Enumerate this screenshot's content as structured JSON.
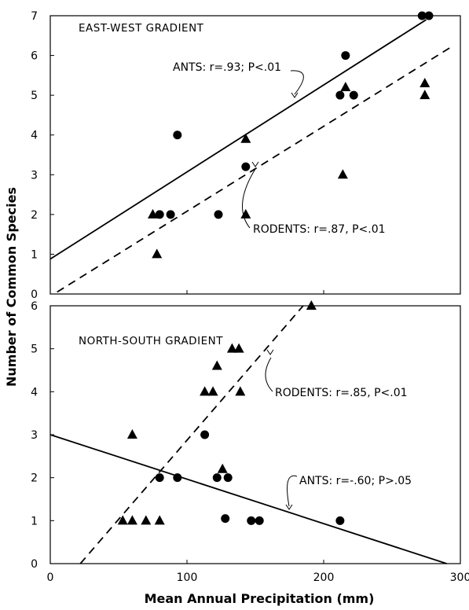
{
  "figure": {
    "ylabel": "Number of Common Species",
    "xlabel": "Mean Annual Precipitation (mm)"
  },
  "chart_data": [
    {
      "type": "scatter",
      "title": "EAST-WEST GRADIENT",
      "xlim": [
        0,
        300
      ],
      "ylim": [
        0,
        7
      ],
      "x_ticks": [],
      "y_ticks": [
        0,
        1,
        2,
        3,
        4,
        5,
        6,
        7
      ],
      "series": [
        {
          "marker": "circle",
          "points": [
            [
              80,
              2
            ],
            [
              88,
              2
            ],
            [
              93,
              4
            ],
            [
              123,
              2
            ],
            [
              143,
              3.2
            ],
            [
              212,
              5
            ],
            [
              216,
              6
            ],
            [
              222,
              5
            ],
            [
              272,
              7
            ],
            [
              277,
              7
            ]
          ]
        },
        {
          "marker": "triangle",
          "points": [
            [
              75,
              2
            ],
            [
              78,
              1
            ],
            [
              143,
              3.9
            ],
            [
              143,
              2
            ],
            [
              214,
              3
            ],
            [
              216,
              5.2
            ],
            [
              274,
              5.3
            ],
            [
              274,
              5
            ]
          ]
        }
      ],
      "lines": [
        {
          "style": "solid",
          "x": [
            0,
            275
          ],
          "y": [
            0.88,
            6.9
          ],
          "annotation": "ANTS: r=.93; P<.01"
        },
        {
          "style": "dashed",
          "x": [
            5,
            295
          ],
          "y": [
            0.05,
            6.25
          ],
          "annotation": "RODENTS: r=.87, P<.01"
        }
      ]
    },
    {
      "type": "scatter",
      "title": "NORTH-SOUTH GRADIENT",
      "xlim": [
        0,
        300
      ],
      "ylim": [
        0,
        6
      ],
      "x_ticks": [
        0,
        100,
        200,
        300
      ],
      "y_ticks": [
        0,
        1,
        2,
        3,
        4,
        5,
        6
      ],
      "series": [
        {
          "marker": "circle",
          "points": [
            [
              80,
              2
            ],
            [
              93,
              2
            ],
            [
              113,
              3
            ],
            [
              122,
              2
            ],
            [
              128,
              1.05
            ],
            [
              130,
              2
            ],
            [
              147,
              1
            ],
            [
              153,
              1
            ],
            [
              212,
              1
            ]
          ]
        },
        {
          "marker": "triangle",
          "points": [
            [
              53,
              1
            ],
            [
              60,
              3
            ],
            [
              60,
              1
            ],
            [
              70,
              1
            ],
            [
              80,
              1
            ],
            [
              113,
              4
            ],
            [
              119,
              4
            ],
            [
              122,
              4.6
            ],
            [
              126,
              2.2
            ],
            [
              133,
              5
            ],
            [
              138,
              5
            ],
            [
              139,
              4
            ],
            [
              191,
              6
            ]
          ]
        }
      ],
      "lines": [
        {
          "style": "solid",
          "x": [
            0,
            290
          ],
          "y": [
            3,
            0
          ],
          "annotation": "ANTS: r=-.60; P>.05"
        },
        {
          "style": "dashed",
          "x": [
            22,
            185
          ],
          "y": [
            0,
            6
          ],
          "annotation": "RODENTS: r=.85, P<.01"
        }
      ]
    }
  ]
}
